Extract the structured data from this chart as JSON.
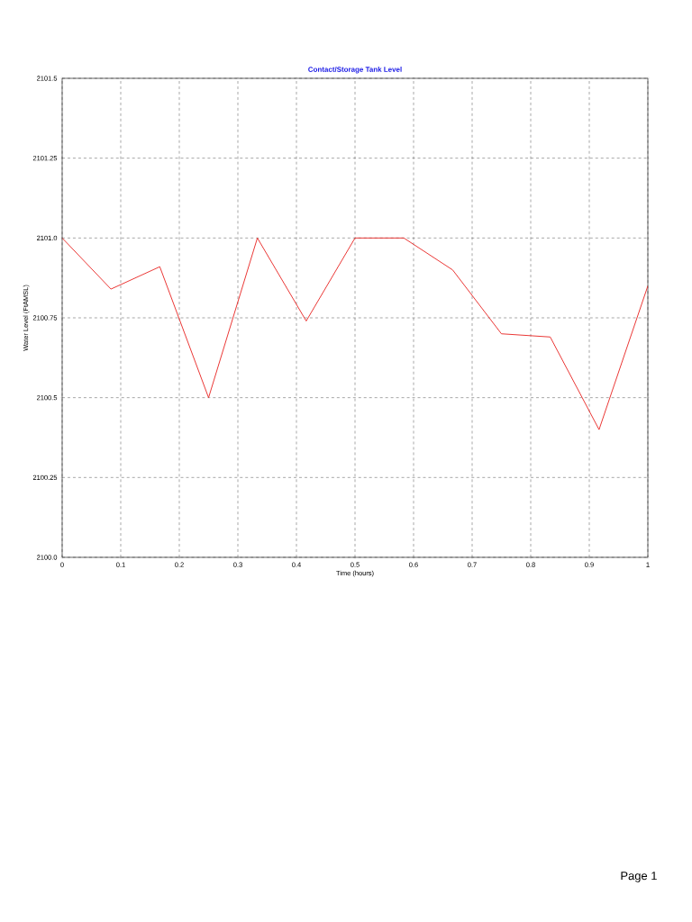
{
  "chart_data": {
    "type": "line",
    "title": "Contact/Storage Tank Level",
    "xlabel": "Time (hours)",
    "ylabel": "Water Level (FtAMSL)",
    "x": [
      0,
      0.0833,
      0.1667,
      0.25,
      0.3333,
      0.4167,
      0.5,
      0.5833,
      0.6667,
      0.75,
      0.8333,
      0.9167,
      1
    ],
    "series": [
      {
        "color": "#e8201e",
        "values": [
          2101.0,
          2100.84,
          2100.91,
          2100.5,
          2101.0,
          2100.74,
          2101.0,
          2101.0,
          2100.9,
          2100.7,
          2100.69,
          2100.4,
          2100.85
        ]
      }
    ],
    "xlim": [
      0,
      1
    ],
    "ylim": [
      2100.0,
      2101.5
    ],
    "xticks": [
      0,
      0.1,
      0.2,
      0.3,
      0.4,
      0.5,
      0.6,
      0.7,
      0.8,
      0.9,
      1
    ],
    "yticks": [
      {
        "value": 2100.0,
        "label": "2100.0"
      },
      {
        "value": 2100.25,
        "label": "2100.25"
      },
      {
        "value": 2100.5,
        "label": "2100.5"
      },
      {
        "value": 2100.75,
        "label": "2100.75"
      },
      {
        "value": 2101.0,
        "label": "2101.0"
      },
      {
        "value": 2101.25,
        "label": "2101.25"
      },
      {
        "value": 2101.5,
        "label": "2101.5"
      }
    ],
    "grid": true,
    "marker": "none",
    "line_style": "solid",
    "annotations": [
      "Page 1"
    ]
  }
}
